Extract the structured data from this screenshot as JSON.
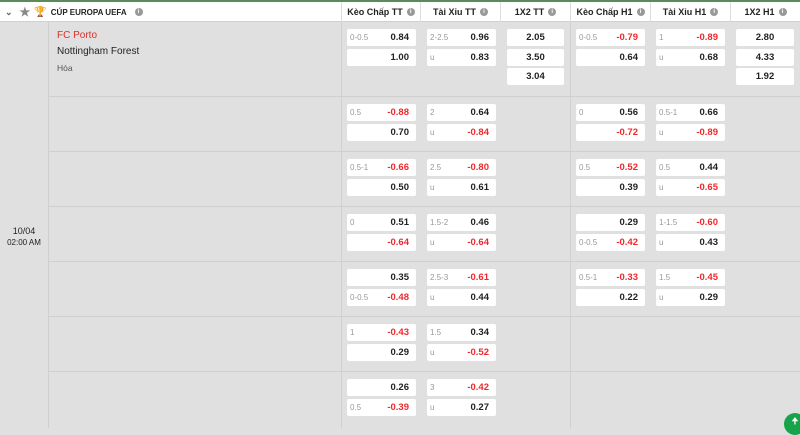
{
  "league": {
    "name": "CÚP EUROPA UEFA",
    "icons": [
      "chevron-down-icon",
      "star-icon",
      "trophy-icon",
      "info-icon"
    ]
  },
  "columns": [
    "Kèo Chấp TT",
    "Tài Xỉu TT",
    "1X2 TT",
    "Kèo Chấp H1",
    "Tài Xỉu H1",
    "1X2 H1"
  ],
  "match": {
    "home": "FC Porto",
    "away": "Nottingham Forest",
    "draw": "Hòa",
    "date": "10/04",
    "time": "02:00 AM",
    "home_color": "#d9302c"
  },
  "colors": {
    "negative": "#f0282d",
    "accent": "#17a34a"
  },
  "rows": [
    {
      "kc_tt": [
        [
          "0-0.5",
          "0.84"
        ],
        [
          "",
          "1.00"
        ]
      ],
      "tx_tt": [
        [
          "2-2.5",
          "0.96"
        ],
        [
          "u",
          "0.83"
        ]
      ],
      "x12_tt": [
        "2.05",
        "3.50",
        "3.04"
      ],
      "kc_h1": [
        [
          "0-0.5",
          "-0.79"
        ],
        [
          "",
          "0.64"
        ]
      ],
      "tx_h1": [
        [
          "1",
          "-0.89"
        ],
        [
          "u",
          "0.68"
        ]
      ],
      "x12_h1": [
        "2.80",
        "4.33",
        "1.92"
      ]
    },
    {
      "kc_tt": [
        [
          "0.5",
          "-0.88"
        ],
        [
          "",
          "0.70"
        ]
      ],
      "tx_tt": [
        [
          "2",
          "0.64"
        ],
        [
          "u",
          "-0.84"
        ]
      ],
      "x12_tt": [],
      "kc_h1": [
        [
          "0",
          "0.56"
        ],
        [
          "",
          "-0.72"
        ]
      ],
      "tx_h1": [
        [
          "0.5-1",
          "0.66"
        ],
        [
          "u",
          "-0.89"
        ]
      ],
      "x12_h1": []
    },
    {
      "kc_tt": [
        [
          "0.5-1",
          "-0.66"
        ],
        [
          "",
          "0.50"
        ]
      ],
      "tx_tt": [
        [
          "2.5",
          "-0.80"
        ],
        [
          "u",
          "0.61"
        ]
      ],
      "x12_tt": [],
      "kc_h1": [
        [
          "0.5",
          "-0.52"
        ],
        [
          "",
          "0.39"
        ]
      ],
      "tx_h1": [
        [
          "0.5",
          "0.44"
        ],
        [
          "u",
          "-0.65"
        ]
      ],
      "x12_h1": []
    },
    {
      "kc_tt": [
        [
          "0",
          "0.51"
        ],
        [
          "",
          "-0.64"
        ]
      ],
      "tx_tt": [
        [
          "1.5-2",
          "0.46"
        ],
        [
          "u",
          "-0.64"
        ]
      ],
      "x12_tt": [],
      "kc_h1": [
        [
          "",
          "0.29"
        ],
        [
          "0-0.5",
          "-0.42"
        ]
      ],
      "tx_h1": [
        [
          "1-1.5",
          "-0.60"
        ],
        [
          "u",
          "0.43"
        ]
      ],
      "x12_h1": []
    },
    {
      "kc_tt": [
        [
          "",
          "0.35"
        ],
        [
          "0-0.5",
          "-0.48"
        ]
      ],
      "tx_tt": [
        [
          "2.5-3",
          "-0.61"
        ],
        [
          "u",
          "0.44"
        ]
      ],
      "x12_tt": [],
      "kc_h1": [
        [
          "0.5-1",
          "-0.33"
        ],
        [
          "",
          "0.22"
        ]
      ],
      "tx_h1": [
        [
          "1.5",
          "-0.45"
        ],
        [
          "u",
          "0.29"
        ]
      ],
      "x12_h1": []
    },
    {
      "kc_tt": [
        [
          "1",
          "-0.43"
        ],
        [
          "",
          "0.29"
        ]
      ],
      "tx_tt": [
        [
          "1.5",
          "0.34"
        ],
        [
          "u",
          "-0.52"
        ]
      ],
      "x12_tt": [],
      "kc_h1": [],
      "tx_h1": [],
      "x12_h1": []
    },
    {
      "kc_tt": [
        [
          "",
          "0.26"
        ],
        [
          "0.5",
          "-0.39"
        ]
      ],
      "tx_tt": [
        [
          "3",
          "-0.42"
        ],
        [
          "u",
          "0.27"
        ]
      ],
      "x12_tt": [],
      "kc_h1": [],
      "tx_h1": [],
      "x12_h1": []
    }
  ],
  "scroll_top_icon": "arrow-up-icon"
}
